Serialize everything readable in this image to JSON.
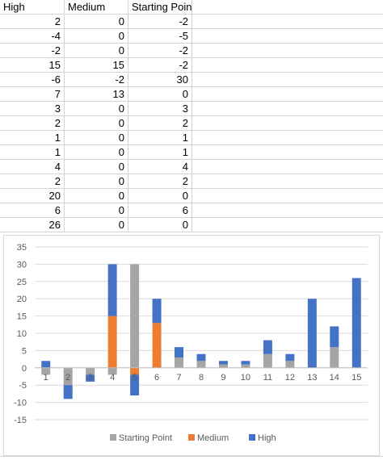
{
  "sheet": {
    "headers": [
      "High",
      "Medium",
      "Starting Point"
    ],
    "rows": [
      [
        "2",
        "0",
        "-2"
      ],
      [
        "-4",
        "0",
        "-5"
      ],
      [
        "-2",
        "0",
        "-2"
      ],
      [
        "15",
        "15",
        "-2"
      ],
      [
        "-6",
        "-2",
        "30"
      ],
      [
        "7",
        "13",
        "0"
      ],
      [
        "3",
        "0",
        "3"
      ],
      [
        "2",
        "0",
        "2"
      ],
      [
        "1",
        "0",
        "1"
      ],
      [
        "1",
        "0",
        "1"
      ],
      [
        "4",
        "0",
        "4"
      ],
      [
        "2",
        "0",
        "2"
      ],
      [
        "20",
        "0",
        "0"
      ],
      [
        "6",
        "0",
        "6"
      ],
      [
        "26",
        "0",
        "0"
      ]
    ]
  },
  "chart_data": {
    "type": "bar",
    "stacked": true,
    "categories": [
      "1",
      "2",
      "3",
      "4",
      "5",
      "6",
      "7",
      "8",
      "9",
      "10",
      "11",
      "12",
      "13",
      "14",
      "15"
    ],
    "series": [
      {
        "name": "Starting Point",
        "color": "#a5a5a5",
        "values": [
          -2,
          -5,
          -2,
          -2,
          30,
          0,
          3,
          2,
          1,
          1,
          4,
          2,
          0,
          6,
          0
        ]
      },
      {
        "name": "Medium",
        "color": "#ed7d31",
        "values": [
          0,
          0,
          0,
          15,
          -2,
          13,
          0,
          0,
          0,
          0,
          0,
          0,
          0,
          0,
          0
        ]
      },
      {
        "name": "High",
        "color": "#4472c4",
        "values": [
          2,
          -4,
          -2,
          15,
          -6,
          7,
          3,
          2,
          1,
          1,
          4,
          2,
          20,
          6,
          26
        ]
      }
    ],
    "ylim": [
      -15,
      35
    ],
    "yticks": [
      "35",
      "30",
      "25",
      "20",
      "15",
      "10",
      "5",
      "0",
      "-5",
      "-10",
      "-15"
    ],
    "grid": true,
    "legend": "bottom",
    "legend_entries": [
      "Starting Point",
      "Medium",
      "High"
    ]
  }
}
